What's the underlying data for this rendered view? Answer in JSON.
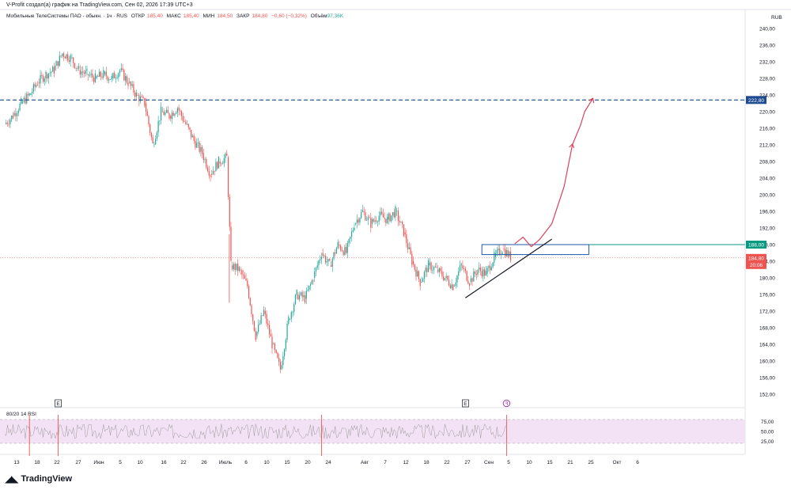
{
  "header": {
    "attribution": "V-Profit создал(а) график на TradingView.com, Сен 02, 2026 17:39 UTC+3"
  },
  "symbol": {
    "name": "Мобильные ТелеСистемы ПАО - обыкн. · 1ч · RUS",
    "open_label": "ОТКР",
    "open": "185,40",
    "high_label": "МАКС",
    "high": "185,40",
    "low_label": "МИН",
    "low": "184,50",
    "close_label": "ЗАКР",
    "close": "184,80",
    "change": "−0,60 (−0,32%)",
    "volume_label": "Объём",
    "volume": "97,36K"
  },
  "brand": {
    "name": "TradingView",
    "logo": "tradingview-logo"
  },
  "colors": {
    "up": "#26a69a",
    "down": "#ef5350",
    "projection": "#d9435a",
    "box": "#1e5aa8",
    "level": "#1e4a8f",
    "resistance": "#089981",
    "rsi_band": "#f3e2f5",
    "rsi_line": "#9c9c9c"
  },
  "chart_data": {
    "type": "candlestick",
    "currency": "RUB",
    "y_axis": {
      "ticks": [
        "240,00",
        "236,00",
        "232,00",
        "228,00",
        "224,00",
        "220,00",
        "216,00",
        "212,00",
        "208,00",
        "204,00",
        "200,00",
        "196,00",
        "192,00",
        "188,00",
        "184,00",
        "180,00",
        "176,00",
        "172,00",
        "168,00",
        "164,00",
        "160,00",
        "156,00",
        "152,00"
      ],
      "range": [
        150.4,
        241.6
      ]
    },
    "x_axis": {
      "ticks": [
        "13",
        "18",
        "22",
        "27",
        "Июн",
        "5",
        "10",
        "16",
        "22",
        "26",
        "Июль",
        "6",
        "10",
        "15",
        "20",
        "24",
        "Авг",
        "7",
        "12",
        "18",
        "22",
        "27",
        "Сен",
        "5",
        "10",
        "15",
        "21",
        "25",
        "Окт",
        "6"
      ]
    },
    "price_path": [
      [
        0,
        217
      ],
      [
        2,
        219
      ],
      [
        4,
        222
      ],
      [
        6,
        224
      ],
      [
        8,
        227
      ],
      [
        10,
        229
      ],
      [
        12,
        230
      ],
      [
        14,
        234
      ],
      [
        16,
        233
      ],
      [
        18,
        230
      ],
      [
        20,
        229
      ],
      [
        22,
        228
      ],
      [
        24,
        229
      ],
      [
        26,
        228
      ],
      [
        28,
        230
      ],
      [
        30,
        227
      ],
      [
        32,
        224
      ],
      [
        34,
        222
      ],
      [
        36,
        212
      ],
      [
        38,
        220
      ],
      [
        40,
        219
      ],
      [
        42,
        221
      ],
      [
        44,
        217
      ],
      [
        46,
        213
      ],
      [
        48,
        210
      ],
      [
        50,
        205
      ],
      [
        52,
        208
      ],
      [
        54,
        209
      ],
      [
        55,
        183
      ],
      [
        57,
        182
      ],
      [
        59,
        178
      ],
      [
        61,
        166
      ],
      [
        63,
        172
      ],
      [
        65,
        164
      ],
      [
        67,
        158
      ],
      [
        69,
        170
      ],
      [
        71,
        176
      ],
      [
        73,
        175
      ],
      [
        75,
        180
      ],
      [
        77,
        186
      ],
      [
        79,
        183
      ],
      [
        81,
        188
      ],
      [
        83,
        186
      ],
      [
        85,
        193
      ],
      [
        87,
        196
      ],
      [
        89,
        193
      ],
      [
        91,
        195
      ],
      [
        93,
        194
      ],
      [
        95,
        196
      ],
      [
        97,
        191
      ],
      [
        99,
        184
      ],
      [
        101,
        179
      ],
      [
        103,
        183
      ],
      [
        105,
        182
      ],
      [
        107,
        180
      ],
      [
        109,
        178
      ],
      [
        111,
        183
      ],
      [
        113,
        179
      ],
      [
        115,
        182
      ],
      [
        117,
        181
      ],
      [
        119,
        185
      ],
      [
        121,
        187
      ],
      [
        123,
        185
      ]
    ],
    "volume_shown_as_text_only": true,
    "annotations": {
      "resistance_level": {
        "value": 188.0,
        "label": "188,00"
      },
      "current_price": {
        "value": 184.8,
        "label": "184,80",
        "countdown": "20:06"
      },
      "target_level": {
        "value": 222.8,
        "label": "222,80",
        "style": "dashed"
      },
      "range_box": {
        "x_start": 116,
        "x_end": 142,
        "y_low": 185.6,
        "y_high": 188.0
      },
      "trendline": {
        "from": [
          112,
          175.2
        ],
        "to": [
          133,
          189.3
        ]
      },
      "projection_path": [
        [
          124,
          188.2
        ],
        [
          126,
          189.8
        ],
        [
          128,
          187.5
        ],
        [
          130,
          189.2
        ],
        [
          133,
          193
        ],
        [
          136,
          202
        ],
        [
          138,
          212
        ],
        [
          140,
          216.8
        ],
        [
          141,
          220
        ],
        [
          143,
          223.2
        ]
      ],
      "event_markers": [
        {
          "label": "E",
          "x": 13
        },
        {
          "label": "E",
          "x": 112
        }
      ],
      "dividend_marker": {
        "label": "ꟻ",
        "x": 122
      }
    },
    "rsi": {
      "label": "80/20 14 RSI",
      "ticks": [
        "75,00",
        "50,00",
        "25,00"
      ],
      "upper": 80,
      "lower": 20,
      "spikes_x": [
        6,
        13,
        77,
        122
      ]
    },
    "grid": false
  }
}
